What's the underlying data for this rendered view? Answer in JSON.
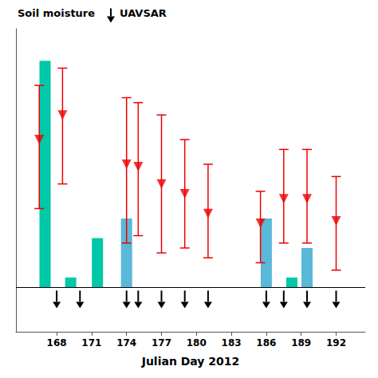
{
  "chart_data": {
    "type": "bar",
    "xlabel": "Julian Day 2012",
    "annotations": [
      "Soil moisture",
      "UAVSAR"
    ],
    "xlim": [
      164.5,
      194.5
    ],
    "xticks": [
      168,
      171,
      174,
      177,
      180,
      183,
      186,
      189,
      192
    ],
    "ylim": [
      -0.18,
      1.05
    ],
    "tick_labels": "x",
    "grid": false,
    "series": [
      {
        "type": "bar",
        "x": [
          167.0,
          169.2,
          171.5,
          174.0,
          186.0,
          188.2,
          189.5
        ],
        "values": [
          0.92,
          0.04,
          0.2,
          0.28,
          0.28,
          0.04,
          0.16
        ],
        "colors": [
          "#00c8a8",
          "#00c8a8",
          "#00c8a8",
          "#5ab8d8",
          "#5ab8d8",
          "#00c8a8",
          "#5ab8d8"
        ]
      },
      {
        "type": "scatter",
        "x": [
          166.5,
          168.5,
          174.0,
          175.0,
          177.0,
          179.0,
          181.0,
          185.5,
          187.5,
          189.5,
          192.0
        ],
        "values": [
          0.6,
          0.7,
          0.5,
          0.49,
          0.42,
          0.38,
          0.3,
          0.26,
          0.36,
          0.36,
          0.27
        ],
        "error_up": [
          0.22,
          0.19,
          0.27,
          0.26,
          0.28,
          0.22,
          0.2,
          0.13,
          0.2,
          0.2,
          0.18
        ],
        "error_down": [
          0.28,
          0.28,
          0.32,
          0.28,
          0.28,
          0.22,
          0.18,
          0.16,
          0.18,
          0.18,
          0.2
        ],
        "color": "#ee0000",
        "marker": "triangle_down"
      },
      {
        "type": "arrow",
        "x": [
          168.0,
          170.0,
          174.0,
          175.0,
          177.0,
          179.0,
          181.0,
          186.0,
          187.5,
          189.5,
          192.0
        ]
      }
    ]
  }
}
